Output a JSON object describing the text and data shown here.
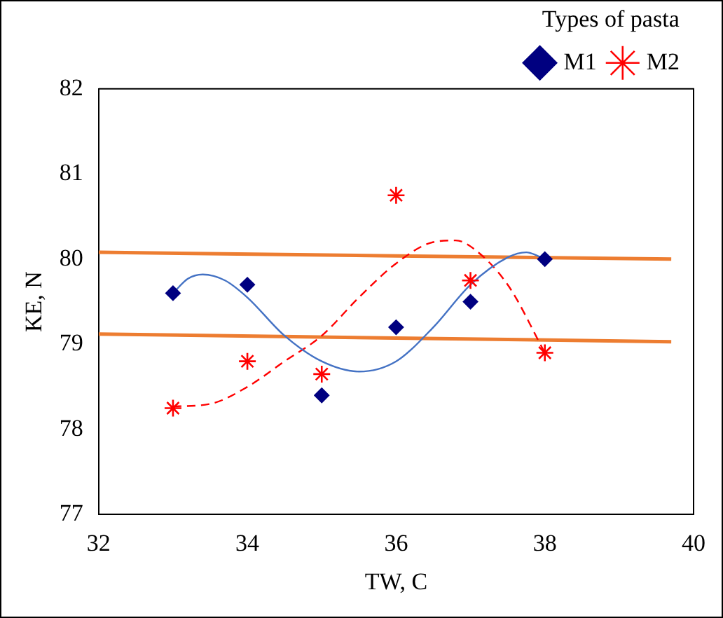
{
  "chart_data": {
    "type": "scatter",
    "xlabel": "TW, C",
    "ylabel": "KE, N",
    "legend_title": "Types of pasta",
    "legend": "top right",
    "grid": false,
    "xlim": [
      32,
      40
    ],
    "xticks": [
      32,
      34,
      36,
      38,
      40
    ],
    "ylim": [
      77,
      82
    ],
    "yticks": [
      77,
      78,
      79,
      80,
      81,
      82
    ],
    "series": [
      {
        "name": "M1",
        "type": "scatter",
        "marker": "diamond",
        "color": "#000080",
        "x": [
          33,
          34,
          35,
          36,
          37,
          38
        ],
        "values": [
          79.6,
          79.7,
          78.4,
          79.2,
          79.5,
          80.0
        ]
      },
      {
        "name": "M2",
        "type": "scatter",
        "marker": "cross",
        "color": "#ff0000",
        "x": [
          33,
          34,
          35,
          36,
          37,
          38
        ],
        "values": [
          78.25,
          78.8,
          78.65,
          80.75,
          79.75,
          78.9
        ]
      },
      {
        "type": "line",
        "line_style": "solid",
        "color": "#4472c4",
        "x": [
          33,
          33.2,
          33.4,
          33.7,
          34,
          34.5,
          35,
          35.5,
          36,
          36.5,
          37,
          37.5,
          37.75,
          38
        ],
        "values": [
          79.6,
          79.77,
          79.82,
          79.75,
          79.55,
          79.1,
          78.8,
          78.68,
          78.8,
          79.2,
          79.7,
          80.02,
          80.08,
          80.0
        ]
      },
      {
        "type": "line",
        "line_style": "dashed",
        "color": "#ff0000",
        "x": [
          33,
          33.5,
          34,
          34.5,
          35,
          35.5,
          36,
          36.5,
          36.8,
          37,
          37.5,
          38
        ],
        "values": [
          78.27,
          78.3,
          78.5,
          78.8,
          79.1,
          79.55,
          79.95,
          80.2,
          80.22,
          80.15,
          79.7,
          78.9
        ]
      },
      {
        "type": "line",
        "line_style": "solid",
        "color": "#ed7d31",
        "x": [
          32,
          39.7
        ],
        "values": [
          80.08,
          80.0
        ]
      },
      {
        "type": "line",
        "line_style": "solid",
        "color": "#ed7d31",
        "x": [
          32,
          39.7
        ],
        "values": [
          79.12,
          79.03
        ]
      }
    ]
  }
}
